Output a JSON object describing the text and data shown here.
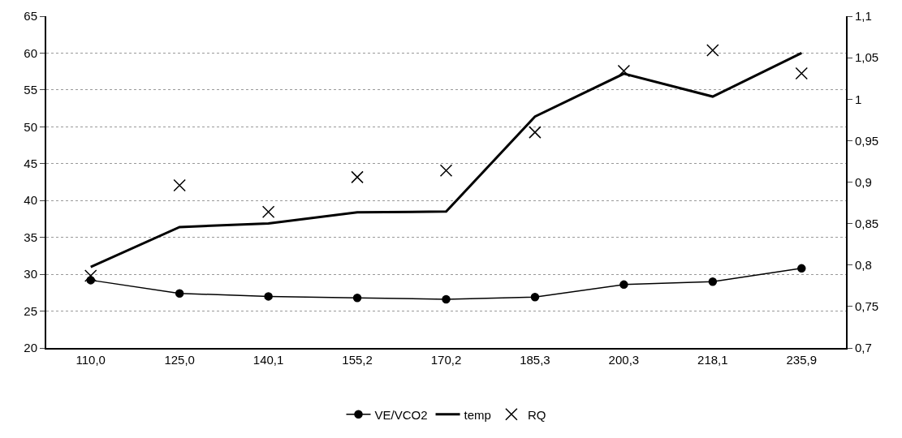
{
  "chart_data": {
    "type": "line",
    "categories": [
      "110,0",
      "125,0",
      "140,1",
      "155,2",
      "170,2",
      "185,3",
      "200,3",
      "218,1",
      "235,9"
    ],
    "series": [
      {
        "name": "VE/VCO2",
        "color": "#000000",
        "marker": "circle",
        "values": [
          29.2,
          27.4,
          27.0,
          26.8,
          26.6,
          26.9,
          28.6,
          29.0,
          30.8
        ]
      },
      {
        "name": "temp",
        "color": "#000000",
        "marker": "none",
        "values": [
          31.0,
          36.4,
          36.9,
          38.4,
          38.5,
          51.4,
          57.2,
          54.1,
          60.0
        ]
      },
      {
        "name": "RQ",
        "type": "scatter",
        "axis": "y2",
        "color": "#000000",
        "marker": "cross",
        "values": [
          0.787,
          0.896,
          0.864,
          0.906,
          0.914,
          0.96,
          1.034,
          1.059,
          1.031
        ]
      }
    ],
    "ylim": [
      20,
      65
    ],
    "yticks": [
      20,
      25,
      30,
      35,
      40,
      45,
      50,
      55,
      60,
      65
    ],
    "y2lim": [
      0.7,
      1.1
    ],
    "y2ticks": [
      {
        "value": 0.7,
        "label": "0,7"
      },
      {
        "value": 0.75,
        "label": "0,75"
      },
      {
        "value": 0.8,
        "label": "0,8"
      },
      {
        "value": 0.85,
        "label": "0,85"
      },
      {
        "value": 0.9,
        "label": "0,9"
      },
      {
        "value": 0.95,
        "label": "0,95"
      },
      {
        "value": 1.0,
        "label": "1"
      },
      {
        "value": 1.05,
        "label": "1,05"
      },
      {
        "value": 1.1,
        "label": "1,1"
      }
    ],
    "grid": "y",
    "legend": "bottom"
  }
}
